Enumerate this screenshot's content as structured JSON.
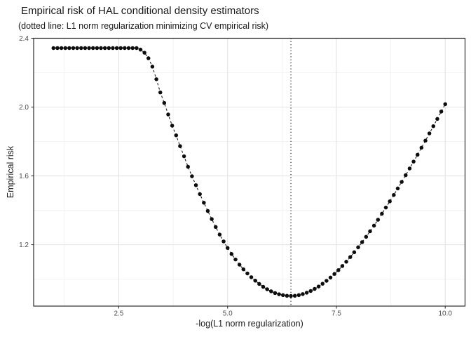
{
  "chart_data": {
    "type": "scatter",
    "title": "Empirical risk of HAL conditional density estimators",
    "subtitle": "(dotted line: L1 norm regularization minimizing CV empirical risk)",
    "xlabel": "-log(L1 norm regularization)",
    "ylabel": "Empirical risk",
    "xlim": [
      0.545,
      10.455
    ],
    "ylim": [
      0.843,
      2.4
    ],
    "x_ticks": [
      2.5,
      5.0,
      7.5,
      10.0
    ],
    "x_tick_labels": [
      "2.5",
      "5.0",
      "7.5",
      "10.0"
    ],
    "x_minor": [
      1.25,
      3.75,
      6.25,
      8.75
    ],
    "y_ticks": [
      1.2,
      1.6,
      2.0,
      2.4
    ],
    "y_tick_labels": [
      "1.2",
      "1.6",
      "2.0",
      "2.4"
    ],
    "y_minor": [
      1.0,
      1.4,
      1.8,
      2.2
    ],
    "grid": true,
    "legend": "none",
    "vline_x": 6.455,
    "vline_style": "dotted",
    "series": [
      {
        "name": "cv-empirical-risk",
        "marker": "point",
        "line_style": "dashed",
        "x": [
          1,
          1.091,
          1.182,
          1.273,
          1.364,
          1.455,
          1.545,
          1.636,
          1.727,
          1.818,
          1.909,
          2,
          2.091,
          2.182,
          2.273,
          2.364,
          2.455,
          2.545,
          2.636,
          2.727,
          2.818,
          2.909,
          3,
          3.091,
          3.182,
          3.273,
          3.364,
          3.455,
          3.545,
          3.636,
          3.727,
          3.818,
          3.909,
          4,
          4.091,
          4.182,
          4.273,
          4.364,
          4.455,
          4.545,
          4.636,
          4.727,
          4.818,
          4.909,
          5,
          5.091,
          5.182,
          5.273,
          5.364,
          5.455,
          5.545,
          5.636,
          5.727,
          5.818,
          5.909,
          6,
          6.091,
          6.182,
          6.273,
          6.364,
          6.455,
          6.545,
          6.636,
          6.727,
          6.818,
          6.909,
          7,
          7.091,
          7.182,
          7.273,
          7.364,
          7.455,
          7.545,
          7.636,
          7.727,
          7.818,
          7.909,
          8,
          8.091,
          8.182,
          8.273,
          8.364,
          8.455,
          8.545,
          8.636,
          8.727,
          8.818,
          8.909,
          9,
          9.091,
          9.182,
          9.273,
          9.364,
          9.455,
          9.545,
          9.636,
          9.727,
          9.818,
          9.909,
          10
        ],
        "y": [
          2.343,
          2.343,
          2.343,
          2.343,
          2.343,
          2.343,
          2.343,
          2.343,
          2.343,
          2.343,
          2.343,
          2.343,
          2.343,
          2.343,
          2.343,
          2.343,
          2.343,
          2.343,
          2.343,
          2.343,
          2.343,
          2.343,
          2.334,
          2.316,
          2.284,
          2.235,
          2.162,
          2.085,
          2.024,
          1.957,
          1.892,
          1.836,
          1.773,
          1.714,
          1.653,
          1.598,
          1.546,
          1.494,
          1.444,
          1.396,
          1.349,
          1.303,
          1.259,
          1.219,
          1.181,
          1.146,
          1.114,
          1.084,
          1.057,
          1.033,
          1.011,
          0.991,
          0.972,
          0.955,
          0.941,
          0.929,
          0.919,
          0.912,
          0.907,
          0.903,
          0.902,
          0.903,
          0.907,
          0.913,
          0.921,
          0.931,
          0.943,
          0.957,
          0.973,
          0.99,
          1.009,
          1.03,
          1.052,
          1.076,
          1.101,
          1.128,
          1.156,
          1.185,
          1.215,
          1.246,
          1.278,
          1.311,
          1.345,
          1.38,
          1.416,
          1.452,
          1.489,
          1.527,
          1.565,
          1.604,
          1.643,
          1.683,
          1.723,
          1.764,
          1.805,
          1.847,
          1.889,
          1.931,
          1.974,
          2.017
        ]
      }
    ]
  },
  "colors": {
    "point": "#0d0d0d",
    "line": "#1a1a1a",
    "vline": "#000000",
    "grid_major": "#e4e4e4",
    "grid_minor": "#f0f0f0",
    "panel_border": "#2b2b2b",
    "tick": "#333333",
    "tick_label": "#4d4d4d",
    "text": "#1a1a1a",
    "background": "#ffffff"
  }
}
